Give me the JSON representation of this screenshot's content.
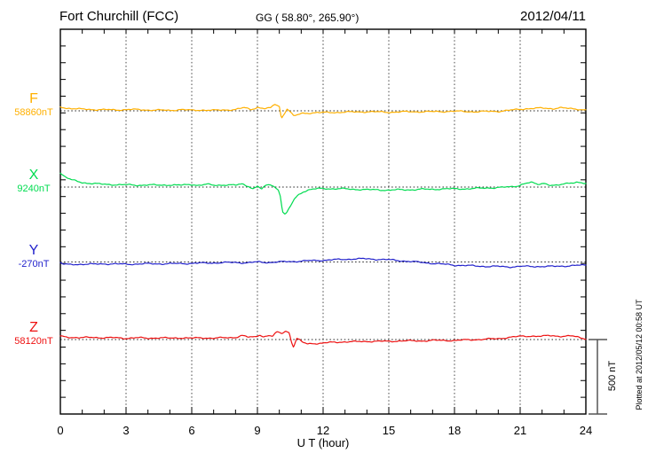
{
  "header": {
    "station": "Fort Churchill (FCC)",
    "coords": "GG ( 58.80°, 265.90°)",
    "date": "2012/04/11"
  },
  "side": {
    "scale_label": "500 nT",
    "plotted_at": "Plotted at 2012/05/12 00:58 UT"
  },
  "chart_data": {
    "type": "line",
    "title": "Fort Churchill (FCC) magnetogram 2012/04/11",
    "xlabel": "U T (hour)",
    "x_range": [
      0,
      24
    ],
    "x_ticks": [
      0,
      3,
      6,
      9,
      12,
      15,
      18,
      21,
      24
    ],
    "x_minor_tick_hours": 1,
    "grid": "dotted vertical at 3-hour marks, dotted baseline per component",
    "scale_bar_nT": 500,
    "points_format": "[hour_UT, deviation_nT_from_baseline]",
    "series": [
      {
        "name": "F",
        "baseline_label": "58860nT",
        "baseline_nT": 58860,
        "color": "#FFB000",
        "points": [
          [
            0,
            27
          ],
          [
            0.3,
            18
          ],
          [
            0.8,
            12
          ],
          [
            1.5,
            9
          ],
          [
            2.5,
            6
          ],
          [
            3.2,
            9
          ],
          [
            4,
            6
          ],
          [
            5,
            3
          ],
          [
            5.5,
            9
          ],
          [
            6,
            3
          ],
          [
            6.5,
            6
          ],
          [
            7,
            3
          ],
          [
            7.5,
            6
          ],
          [
            8,
            9
          ],
          [
            8.4,
            21
          ],
          [
            8.7,
            9
          ],
          [
            9,
            24
          ],
          [
            9.3,
            15
          ],
          [
            9.6,
            18
          ],
          [
            9.8,
            45
          ],
          [
            10,
            30
          ],
          [
            10.1,
            -51
          ],
          [
            10.25,
            -12
          ],
          [
            10.35,
            15
          ],
          [
            10.5,
            -6
          ],
          [
            10.65,
            -36
          ],
          [
            10.8,
            -30
          ],
          [
            11,
            -18
          ],
          [
            11.3,
            -15
          ],
          [
            11.7,
            -12
          ],
          [
            12,
            -12
          ],
          [
            13,
            -9
          ],
          [
            14,
            -6
          ],
          [
            15,
            -9
          ],
          [
            16,
            -6
          ],
          [
            17,
            -6
          ],
          [
            18,
            -3
          ],
          [
            19,
            -6
          ],
          [
            20,
            -3
          ],
          [
            20.7,
            6
          ],
          [
            21.3,
            15
          ],
          [
            22,
            18
          ],
          [
            22.5,
            15
          ],
          [
            22.8,
            21
          ],
          [
            23.2,
            15
          ],
          [
            23.6,
            12
          ],
          [
            24,
            6
          ]
        ]
      },
      {
        "name": "X",
        "baseline_label": "9240nT",
        "baseline_nT": 9240,
        "color": "#00DC50",
        "points": [
          [
            0,
            95
          ],
          [
            0.2,
            71
          ],
          [
            0.5,
            48
          ],
          [
            1,
            30
          ],
          [
            1.5,
            24
          ],
          [
            2,
            18
          ],
          [
            3,
            15
          ],
          [
            3.5,
            12
          ],
          [
            4,
            15
          ],
          [
            4.5,
            12
          ],
          [
            5,
            15
          ],
          [
            5.5,
            12
          ],
          [
            6,
            18
          ],
          [
            6.3,
            12
          ],
          [
            6.7,
            18
          ],
          [
            7,
            12
          ],
          [
            7.5,
            15
          ],
          [
            8,
            12
          ],
          [
            8.3,
            21
          ],
          [
            8.6,
            6
          ],
          [
            8.8,
            -12
          ],
          [
            9,
            6
          ],
          [
            9.2,
            -15
          ],
          [
            9.4,
            12
          ],
          [
            9.6,
            18
          ],
          [
            9.8,
            0
          ],
          [
            9.95,
            -18
          ],
          [
            10.05,
            -60
          ],
          [
            10.15,
            -167
          ],
          [
            10.25,
            -184
          ],
          [
            10.35,
            -173
          ],
          [
            10.5,
            -131
          ],
          [
            10.7,
            -77
          ],
          [
            10.9,
            -48
          ],
          [
            11.1,
            -30
          ],
          [
            11.4,
            -18
          ],
          [
            11.7,
            -12
          ],
          [
            12,
            -9
          ],
          [
            12.5,
            -12
          ],
          [
            13,
            -12
          ],
          [
            13.5,
            -15
          ],
          [
            14,
            -18
          ],
          [
            14.5,
            -18
          ],
          [
            15,
            -21
          ],
          [
            15.5,
            -18
          ],
          [
            16,
            -18
          ],
          [
            16.5,
            -15
          ],
          [
            17,
            -15
          ],
          [
            17.5,
            -12
          ],
          [
            18,
            -12
          ],
          [
            18.5,
            -12
          ],
          [
            19,
            -9
          ],
          [
            19.5,
            -6
          ],
          [
            20,
            -3
          ],
          [
            20.5,
            0
          ],
          [
            20.9,
            9
          ],
          [
            21.2,
            24
          ],
          [
            21.5,
            30
          ],
          [
            21.8,
            18
          ],
          [
            22.1,
            27
          ],
          [
            22.4,
            12
          ],
          [
            22.7,
            9
          ],
          [
            23,
            21
          ],
          [
            23.3,
            30
          ],
          [
            23.6,
            33
          ],
          [
            23.8,
            27
          ],
          [
            24,
            21
          ]
        ]
      },
      {
        "name": "Y",
        "baseline_label": "-270nT",
        "baseline_nT": -270,
        "color": "#2222CC",
        "points": [
          [
            0,
            -6
          ],
          [
            0.15,
            -15
          ],
          [
            0.4,
            -18
          ],
          [
            0.8,
            -15
          ],
          [
            1.5,
            -15
          ],
          [
            2,
            -12
          ],
          [
            3,
            -15
          ],
          [
            4,
            -12
          ],
          [
            5,
            -12
          ],
          [
            6,
            -9
          ],
          [
            7,
            -6
          ],
          [
            8,
            -3
          ],
          [
            8.5,
            -6
          ],
          [
            9,
            0
          ],
          [
            9.5,
            -3
          ],
          [
            10,
            0
          ],
          [
            10.5,
            3
          ],
          [
            11,
            6
          ],
          [
            11.5,
            9
          ],
          [
            12,
            12
          ],
          [
            12.5,
            15
          ],
          [
            13,
            18
          ],
          [
            13.5,
            21
          ],
          [
            14,
            21
          ],
          [
            14.5,
            18
          ],
          [
            15,
            15
          ],
          [
            15.5,
            9
          ],
          [
            16,
            3
          ],
          [
            16.5,
            -3
          ],
          [
            17,
            -9
          ],
          [
            17.5,
            -15
          ],
          [
            18,
            -21
          ],
          [
            18.5,
            -24
          ],
          [
            19,
            -27
          ],
          [
            19.5,
            -30
          ],
          [
            20,
            -30
          ],
          [
            20.5,
            -33
          ],
          [
            21,
            -30
          ],
          [
            21.5,
            -30
          ],
          [
            22,
            -30
          ],
          [
            22.5,
            -30
          ],
          [
            23,
            -27
          ],
          [
            23.5,
            -24
          ],
          [
            24,
            -21
          ]
        ]
      },
      {
        "name": "Z",
        "baseline_label": "58120nT",
        "baseline_nT": 58120,
        "color": "#EE1111",
        "points": [
          [
            0,
            21
          ],
          [
            0.5,
            15
          ],
          [
            1,
            12
          ],
          [
            1.5,
            15
          ],
          [
            2,
            12
          ],
          [
            2.5,
            12
          ],
          [
            3,
            9
          ],
          [
            3.5,
            12
          ],
          [
            4,
            9
          ],
          [
            4.5,
            12
          ],
          [
            5,
            9
          ],
          [
            5.5,
            12
          ],
          [
            6,
            9
          ],
          [
            6.5,
            12
          ],
          [
            7,
            9
          ],
          [
            7.5,
            12
          ],
          [
            8,
            15
          ],
          [
            8.3,
            27
          ],
          [
            8.6,
            15
          ],
          [
            8.9,
            18
          ],
          [
            9.1,
            33
          ],
          [
            9.3,
            18
          ],
          [
            9.5,
            27
          ],
          [
            9.7,
            21
          ],
          [
            9.9,
            51
          ],
          [
            10.1,
            42
          ],
          [
            10.3,
            57
          ],
          [
            10.45,
            48
          ],
          [
            10.55,
            -12
          ],
          [
            10.65,
            -51
          ],
          [
            10.8,
            6
          ],
          [
            10.95,
            -6
          ],
          [
            11.1,
            -21
          ],
          [
            11.3,
            -30
          ],
          [
            11.5,
            -24
          ],
          [
            11.8,
            -27
          ],
          [
            12,
            -24
          ],
          [
            12.5,
            -18
          ],
          [
            13,
            -15
          ],
          [
            13.5,
            -15
          ],
          [
            14,
            -12
          ],
          [
            14.5,
            -12
          ],
          [
            15,
            -12
          ],
          [
            15.5,
            -9
          ],
          [
            16,
            -9
          ],
          [
            16.5,
            -9
          ],
          [
            17,
            -6
          ],
          [
            17.5,
            -6
          ],
          [
            18,
            -6
          ],
          [
            18.5,
            -3
          ],
          [
            19,
            0
          ],
          [
            19.5,
            3
          ],
          [
            20,
            6
          ],
          [
            20.5,
            15
          ],
          [
            21,
            21
          ],
          [
            21.5,
            24
          ],
          [
            22,
            21
          ],
          [
            22.3,
            27
          ],
          [
            22.7,
            24
          ],
          [
            23,
            21
          ],
          [
            23.3,
            24
          ],
          [
            23.6,
            18
          ],
          [
            23.8,
            12
          ],
          [
            24,
            6
          ]
        ]
      }
    ]
  }
}
